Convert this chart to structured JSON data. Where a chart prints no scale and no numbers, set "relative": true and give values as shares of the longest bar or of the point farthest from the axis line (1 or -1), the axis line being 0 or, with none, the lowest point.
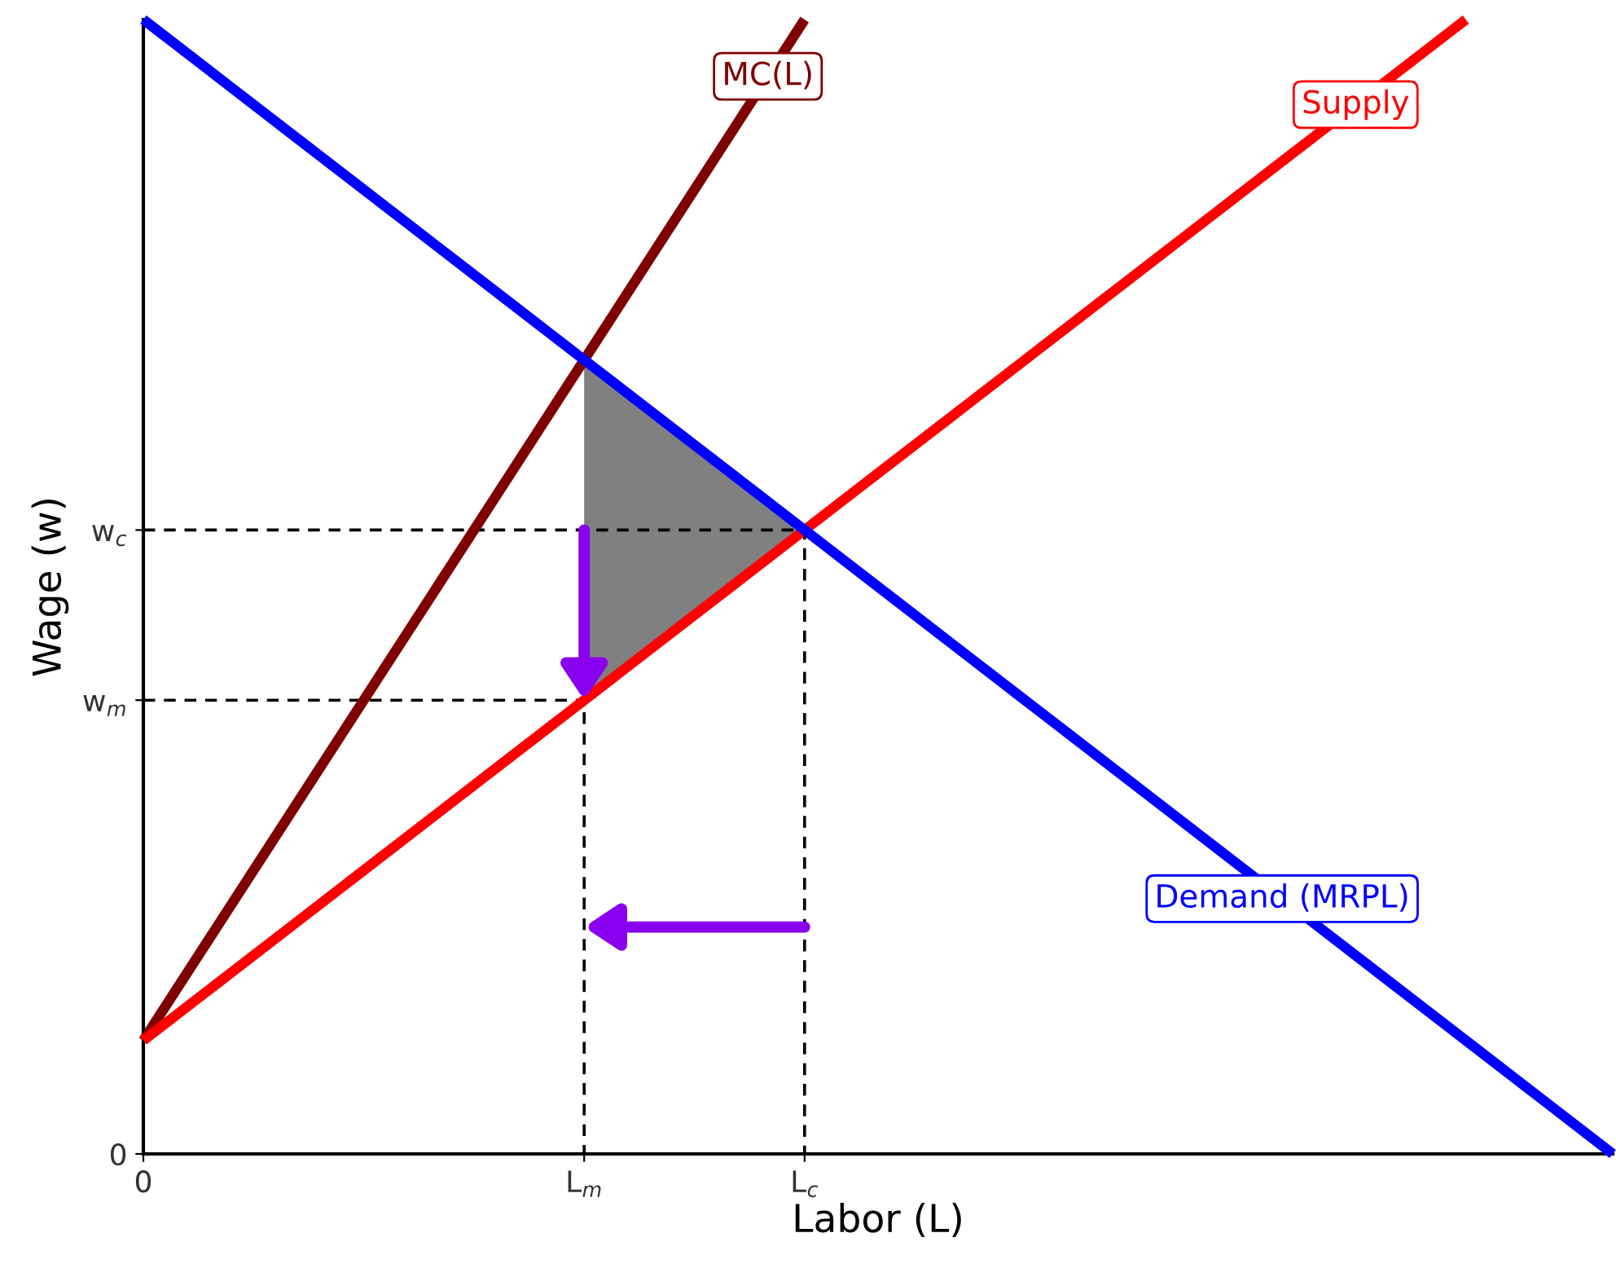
{
  "chart_data": {
    "type": "line",
    "relative": true,
    "xlabel": "Labor (L)",
    "ylabel": "Wage (w)",
    "categories": [
      "0",
      null,
      null,
      null,
      null,
      null,
      "L$_{m}$",
      null,
      null,
      "L$_{c}$",
      null,
      null,
      null,
      null,
      null,
      null,
      null,
      null,
      null,
      null,
      null
    ],
    "series": [
      {
        "color": "#7f0000",
        "values": [
          0.1,
          0.2,
          0.3,
          0.4,
          0.5,
          0.6,
          0.7,
          0.8,
          0.9,
          1.0,
          null,
          null,
          null,
          null,
          null,
          null,
          null,
          null,
          null,
          null,
          null
        ]
      },
      {
        "color": "#ff0000",
        "values": [
          0.1,
          0.15,
          0.2,
          0.25,
          0.3,
          0.35,
          0.4,
          0.45,
          0.5,
          0.55,
          0.6,
          0.65,
          0.7,
          0.75,
          0.8,
          0.85,
          0.9,
          0.95,
          1.0,
          null,
          null
        ]
      },
      {
        "color": "#0000ff",
        "values": [
          1.0,
          0.95,
          0.9,
          0.85,
          0.8,
          0.75,
          0.7,
          0.65,
          0.6,
          0.55,
          0.5,
          0.45,
          0.4,
          0.35,
          0.3,
          0.25,
          0.2,
          0.15,
          0.1,
          0.05,
          0
        ]
      }
    ],
    "ref_lines": [
      {
        "axis": "y",
        "value": 0,
        "label": "0",
        "color": "#000000"
      },
      {
        "axis": "y",
        "value": 0.4,
        "label": "w$_{m}$",
        "color": "#000000",
        "line_style": "dashed"
      },
      {
        "axis": "y",
        "value": 0.55,
        "label": "w$_{c}$",
        "color": "#000000",
        "line_style": "dashed"
      }
    ],
    "annotations": [
      "MC(L)",
      "Supply",
      "Demand (MRPL)"
    ]
  }
}
